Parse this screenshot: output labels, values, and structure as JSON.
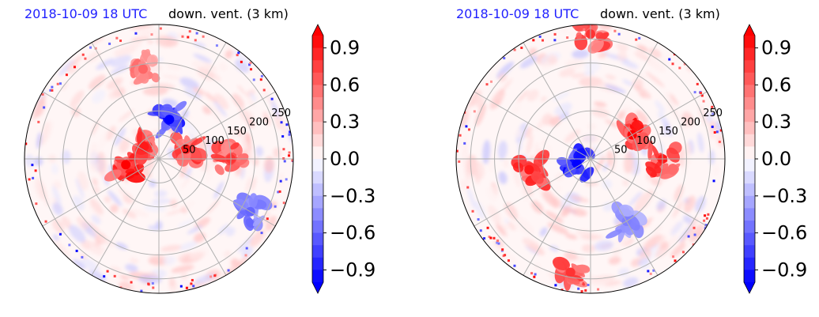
{
  "panels": [
    {
      "date_label": "2018-10-09 18 UTC",
      "field_label": "down. vent. (3 km)",
      "radial_tick_labels": [
        "50",
        "100",
        "150",
        "200",
        "250"
      ]
    },
    {
      "date_label": "2018-10-09 18 UTC",
      "field_label": "down. vent. (3 km)",
      "radial_tick_labels": [
        "50",
        "100",
        "150",
        "200",
        "250"
      ]
    }
  ],
  "colorbar": {
    "ticks": [
      "0.9",
      "0.6",
      "0.3",
      "0.0",
      "−0.3",
      "−0.6",
      "−0.9"
    ],
    "range": [
      -1.0,
      1.0
    ],
    "levels": 20,
    "colormap": "bwr",
    "extend": "both"
  },
  "colors": {
    "title_blue": "#1f1fff",
    "positive": "#ff0000",
    "negative": "#0000ff",
    "grid": "#b0b0b0"
  },
  "chart_data": [
    {
      "type": "heatmap",
      "projection": "polar",
      "title": "down. vent. (3 km)",
      "subtitle": "2018-10-09 18 UTC",
      "radial_ticks": [
        50,
        100,
        150,
        200,
        250
      ],
      "angular_grid_step_deg": 30,
      "value_range": [
        -1.0,
        1.0
      ],
      "colorbar_ticks": [
        -0.9,
        -0.6,
        -0.3,
        0.0,
        0.3,
        0.6,
        0.9
      ],
      "features": [
        {
          "sign": "positive",
          "value": 1.0,
          "r": 70,
          "theta_deg": 190
        },
        {
          "sign": "positive",
          "value": 0.9,
          "r": 40,
          "theta_deg": 140
        },
        {
          "sign": "positive",
          "value": 0.9,
          "r": 60,
          "theta_deg": 20
        },
        {
          "sign": "positive",
          "value": 0.6,
          "r": 190,
          "theta_deg": 100
        },
        {
          "sign": "positive",
          "value": 0.8,
          "r": 150,
          "theta_deg": 0
        },
        {
          "sign": "negative",
          "value": -1.0,
          "r": 85,
          "theta_deg": 75
        },
        {
          "sign": "negative",
          "value": -0.6,
          "r": 220,
          "theta_deg": 330
        }
      ]
    },
    {
      "type": "heatmap",
      "projection": "polar",
      "title": "down. vent. (3 km)",
      "subtitle": "2018-10-09 18 UTC",
      "radial_ticks": [
        50,
        100,
        150,
        200,
        250
      ],
      "angular_grid_step_deg": 30,
      "value_range": [
        -1.0,
        1.0
      ],
      "colorbar_ticks": [
        -0.9,
        -0.6,
        -0.3,
        0.0,
        0.3,
        0.6,
        0.9
      ],
      "features": [
        {
          "sign": "positive",
          "value": 1.0,
          "r": 100,
          "theta_deg": 30
        },
        {
          "sign": "positive",
          "value": 0.9,
          "r": 150,
          "theta_deg": 0
        },
        {
          "sign": "positive",
          "value": 0.9,
          "r": 130,
          "theta_deg": 190
        },
        {
          "sign": "positive",
          "value": 0.8,
          "r": 260,
          "theta_deg": 90
        },
        {
          "sign": "positive",
          "value": 0.8,
          "r": 240,
          "theta_deg": 260
        },
        {
          "sign": "negative",
          "value": -1.0,
          "r": 30,
          "theta_deg": 200
        },
        {
          "sign": "negative",
          "value": -0.5,
          "r": 150,
          "theta_deg": 300
        }
      ]
    }
  ]
}
